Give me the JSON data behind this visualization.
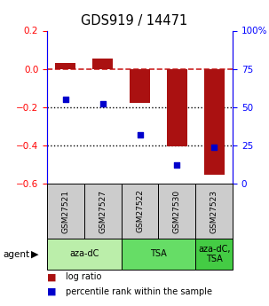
{
  "title": "GDS919 / 14471",
  "samples": [
    "GSM27521",
    "GSM27527",
    "GSM27522",
    "GSM27530",
    "GSM27523"
  ],
  "log_ratios": [
    0.03,
    0.055,
    -0.18,
    -0.405,
    -0.555
  ],
  "percentile_ranks": [
    55,
    52,
    32,
    12,
    24
  ],
  "ylim_left": [
    -0.6,
    0.2
  ],
  "ylim_right": [
    0,
    100
  ],
  "yticks_left": [
    -0.6,
    -0.4,
    -0.2,
    0.0,
    0.2
  ],
  "yticks_right": [
    0,
    25,
    50,
    75,
    100
  ],
  "ytick_labels_right": [
    "0",
    "25",
    "50",
    "75",
    "100%"
  ],
  "bar_color": "#AA1111",
  "dot_color": "#0000CC",
  "dashed_line_color": "#CC2222",
  "dotted_line_color": "#000000",
  "agent_groups": [
    {
      "label": "aza-dC",
      "span": [
        0,
        2
      ],
      "color": "#BBEEAA"
    },
    {
      "label": "TSA",
      "span": [
        2,
        4
      ],
      "color": "#66DD66"
    },
    {
      "label": "aza-dC,\nTSA",
      "span": [
        4,
        5
      ],
      "color": "#44CC44"
    }
  ],
  "sample_box_color": "#CCCCCC",
  "agent_label": "agent",
  "legend_items": [
    {
      "color": "#AA1111",
      "label": "log ratio"
    },
    {
      "color": "#0000CC",
      "label": "percentile rank within the sample"
    }
  ],
  "bar_width": 0.55
}
